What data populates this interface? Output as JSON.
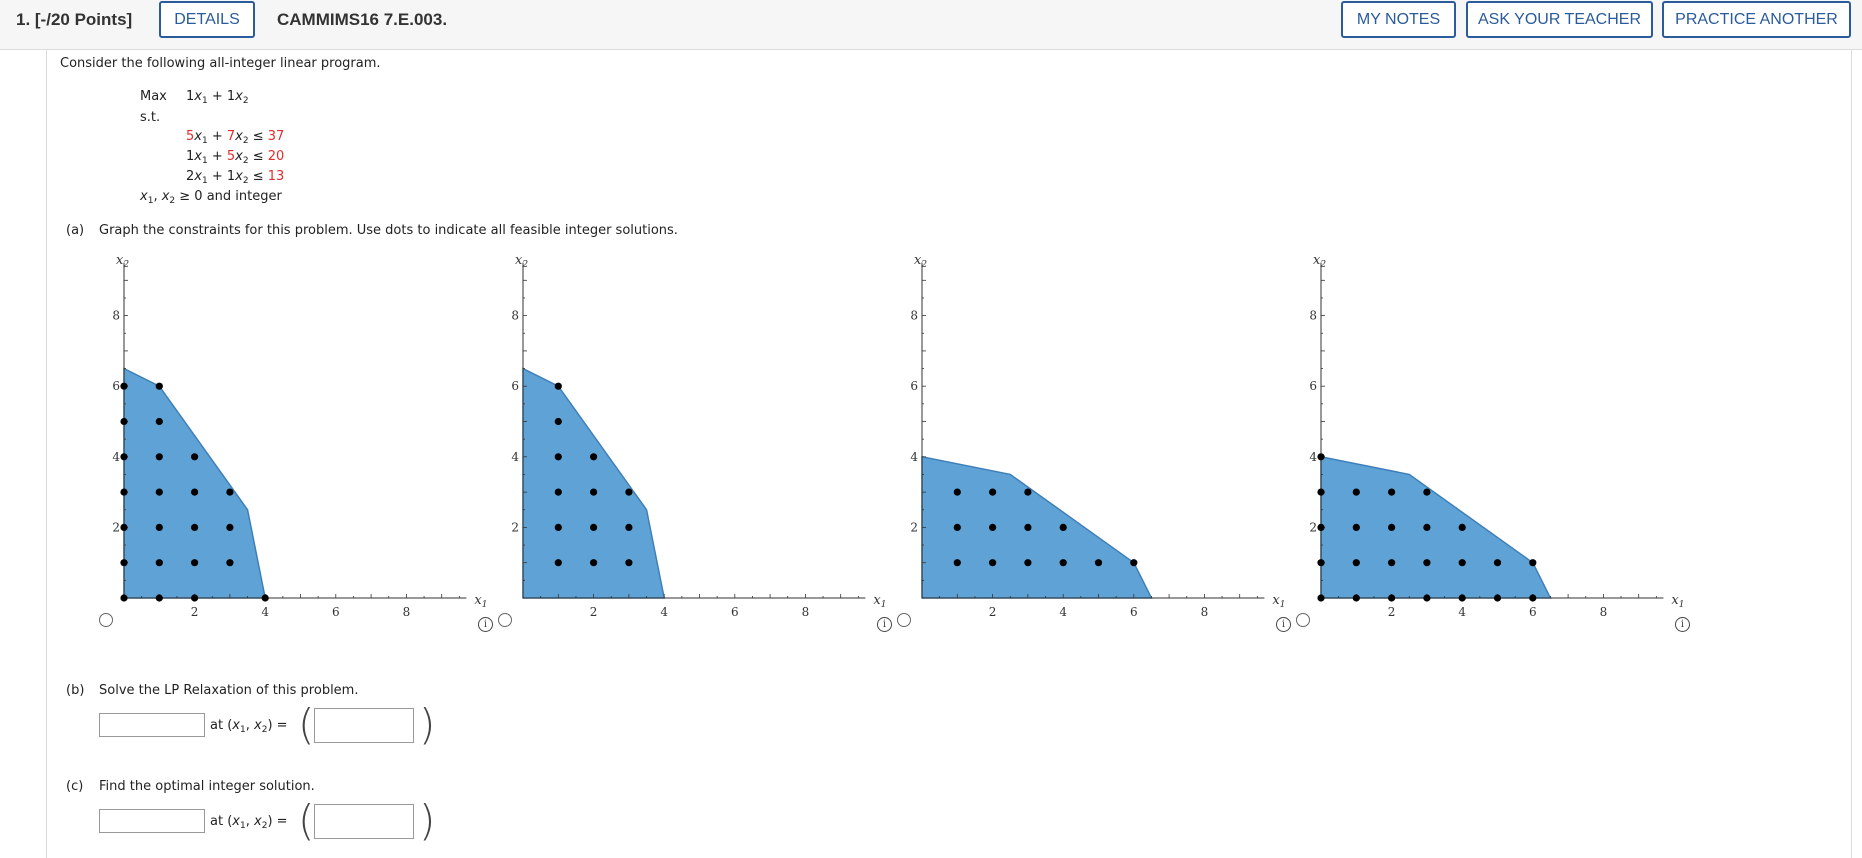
{
  "header": {
    "points": "1. [-/20 Points]",
    "details": "DETAILS",
    "question_id": "CAMMIMS16 7.E.003.",
    "my_notes": "MY NOTES",
    "ask_teacher": "ASK YOUR TEACHER",
    "practice_another": "PRACTICE ANOTHER"
  },
  "problem": {
    "intro": "Consider the following all-integer linear program.",
    "max_label": "Max",
    "objective": {
      "c1": "1",
      "c2": "1"
    },
    "st_label": "s.t.",
    "constraints": [
      {
        "a1": "5",
        "a2": "7",
        "rhs": "37"
      },
      {
        "a1": "1",
        "a2": "5",
        "rhs": "20"
      },
      {
        "a1": "2",
        "a2": "1",
        "rhs": "13"
      }
    ],
    "nonneg": "≥ 0 and integer"
  },
  "part_a": {
    "label": "(a)",
    "text": "Graph the constraints for this problem. Use dots to indicate all feasible integer solutions."
  },
  "part_b": {
    "label": "(b)",
    "text": "Solve the LP Relaxation of this problem.",
    "at_text": "at",
    "eq": "="
  },
  "part_c": {
    "label": "(c)",
    "text": "Find the optimal integer solution.",
    "at_text": "at",
    "eq": "="
  },
  "axis_labels": {
    "x": "x",
    "x_sub": "1",
    "y": "x",
    "y_sub": "2"
  },
  "chart_data": [
    {
      "type": "scatter",
      "xlim": [
        0,
        9.7
      ],
      "ylim": [
        0,
        9.5
      ],
      "ticks": [
        2,
        4,
        6,
        8
      ],
      "polygon": [
        [
          0,
          0
        ],
        [
          0,
          6.5
        ],
        [
          1,
          6
        ],
        [
          3.5,
          2.5
        ],
        [
          4,
          0
        ]
      ],
      "points": [
        [
          0,
          0
        ],
        [
          0,
          2
        ],
        [
          0,
          4
        ],
        [
          0,
          6
        ],
        [
          1,
          0
        ],
        [
          1,
          1
        ],
        [
          1,
          2
        ],
        [
          1,
          3
        ],
        [
          1,
          4
        ],
        [
          1,
          5
        ],
        [
          1,
          6
        ],
        [
          2,
          0
        ],
        [
          2,
          1
        ],
        [
          2,
          2
        ],
        [
          2,
          3
        ],
        [
          2,
          4
        ],
        [
          3,
          1
        ],
        [
          3,
          2
        ],
        [
          3,
          3
        ],
        [
          4,
          0
        ],
        [
          0,
          1
        ],
        [
          0,
          3
        ],
        [
          0,
          5
        ]
      ]
    },
    {
      "type": "scatter",
      "xlim": [
        0,
        9.7
      ],
      "ylim": [
        0,
        9.5
      ],
      "ticks": [
        2,
        4,
        6,
        8
      ],
      "polygon": [
        [
          0,
          0
        ],
        [
          0,
          6.5
        ],
        [
          1,
          6
        ],
        [
          3.5,
          2.5
        ],
        [
          4,
          0
        ]
      ],
      "points": [
        [
          1,
          1
        ],
        [
          1,
          2
        ],
        [
          1,
          3
        ],
        [
          1,
          4
        ],
        [
          1,
          5
        ],
        [
          1,
          6
        ],
        [
          2,
          1
        ],
        [
          2,
          2
        ],
        [
          2,
          3
        ],
        [
          2,
          4
        ],
        [
          3,
          1
        ],
        [
          3,
          2
        ],
        [
          3,
          3
        ]
      ]
    },
    {
      "type": "scatter",
      "xlim": [
        0,
        9.7
      ],
      "ylim": [
        0,
        9.5
      ],
      "ticks": [
        2,
        4,
        6,
        8
      ],
      "polygon": [
        [
          0,
          0
        ],
        [
          0,
          4
        ],
        [
          2.5,
          3.5
        ],
        [
          6,
          1
        ],
        [
          6.5,
          0
        ]
      ],
      "points": [
        [
          1,
          1
        ],
        [
          1,
          2
        ],
        [
          1,
          3
        ],
        [
          2,
          1
        ],
        [
          2,
          2
        ],
        [
          2,
          3
        ],
        [
          3,
          1
        ],
        [
          3,
          2
        ],
        [
          3,
          3
        ],
        [
          4,
          1
        ],
        [
          4,
          2
        ],
        [
          5,
          1
        ],
        [
          6,
          1
        ]
      ]
    },
    {
      "type": "scatter",
      "xlim": [
        0,
        9.7
      ],
      "ylim": [
        0,
        9.5
      ],
      "ticks": [
        2,
        4,
        6,
        8
      ],
      "polygon": [
        [
          0,
          0
        ],
        [
          0,
          4
        ],
        [
          2.5,
          3.5
        ],
        [
          6,
          1
        ],
        [
          6.5,
          0
        ]
      ],
      "points": [
        [
          0,
          0
        ],
        [
          0,
          1
        ],
        [
          0,
          2
        ],
        [
          0,
          3
        ],
        [
          0,
          4
        ],
        [
          1,
          0
        ],
        [
          1,
          1
        ],
        [
          1,
          2
        ],
        [
          1,
          3
        ],
        [
          2,
          0
        ],
        [
          2,
          1
        ],
        [
          2,
          2
        ],
        [
          2,
          3
        ],
        [
          3,
          0
        ],
        [
          3,
          1
        ],
        [
          3,
          2
        ],
        [
          3,
          3
        ],
        [
          4,
          0
        ],
        [
          4,
          1
        ],
        [
          4,
          2
        ],
        [
          5,
          0
        ],
        [
          5,
          1
        ],
        [
          6,
          0
        ],
        [
          6,
          1
        ]
      ]
    }
  ]
}
